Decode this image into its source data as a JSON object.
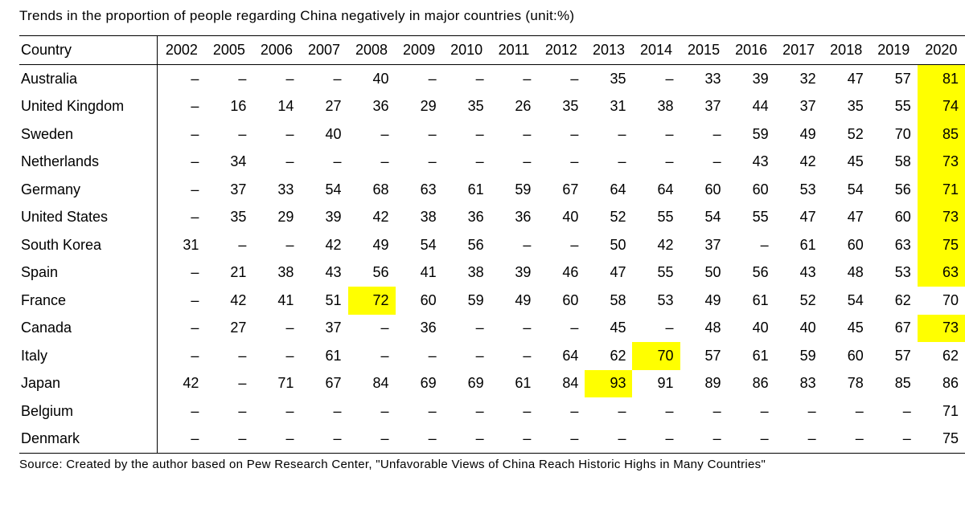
{
  "title": "Trends in the proportion of people regarding China negatively in major countries (unit:%)",
  "table": {
    "header": [
      "Country",
      "2002",
      "2005",
      "2006",
      "2007",
      "2008",
      "2009",
      "2010",
      "2011",
      "2012",
      "2013",
      "2014",
      "2015",
      "2016",
      "2017",
      "2018",
      "2019",
      "2020"
    ],
    "highlight_color": "#ffff00",
    "rows": [
      {
        "country": "Australia",
        "values": [
          "–",
          "–",
          "–",
          "–",
          "40",
          "–",
          "–",
          "–",
          "–",
          "35",
          "–",
          "33",
          "39",
          "32",
          "47",
          "57",
          "81"
        ],
        "highlight": "2020"
      },
      {
        "country": "United Kingdom",
        "values": [
          "–",
          "16",
          "14",
          "27",
          "36",
          "29",
          "35",
          "26",
          "35",
          "31",
          "38",
          "37",
          "44",
          "37",
          "35",
          "55",
          "74"
        ],
        "highlight": "2020"
      },
      {
        "country": "Sweden",
        "values": [
          "–",
          "–",
          "–",
          "40",
          "–",
          "–",
          "–",
          "–",
          "–",
          "–",
          "–",
          "–",
          "59",
          "49",
          "52",
          "70",
          "85"
        ],
        "highlight": "2020"
      },
      {
        "country": "Netherlands",
        "values": [
          "–",
          "34",
          "–",
          "–",
          "–",
          "–",
          "–",
          "–",
          "–",
          "–",
          "–",
          "–",
          "43",
          "42",
          "45",
          "58",
          "73"
        ],
        "highlight": "2020"
      },
      {
        "country": "Germany",
        "values": [
          "–",
          "37",
          "33",
          "54",
          "68",
          "63",
          "61",
          "59",
          "67",
          "64",
          "64",
          "60",
          "60",
          "53",
          "54",
          "56",
          "71"
        ],
        "highlight": "2020"
      },
      {
        "country": "United States",
        "values": [
          "–",
          "35",
          "29",
          "39",
          "42",
          "38",
          "36",
          "36",
          "40",
          "52",
          "55",
          "54",
          "55",
          "47",
          "47",
          "60",
          "73"
        ],
        "highlight": "2020"
      },
      {
        "country": "South Korea",
        "values": [
          "31",
          "–",
          "–",
          "42",
          "49",
          "54",
          "56",
          "–",
          "–",
          "50",
          "42",
          "37",
          "–",
          "61",
          "60",
          "63",
          "75"
        ],
        "highlight": "2020"
      },
      {
        "country": "Spain",
        "values": [
          "–",
          "21",
          "38",
          "43",
          "56",
          "41",
          "38",
          "39",
          "46",
          "47",
          "55",
          "50",
          "56",
          "43",
          "48",
          "53",
          "63"
        ],
        "highlight": "2020"
      },
      {
        "country": "France",
        "values": [
          "–",
          "42",
          "41",
          "51",
          "72",
          "60",
          "59",
          "49",
          "60",
          "58",
          "53",
          "49",
          "61",
          "52",
          "54",
          "62",
          "70"
        ],
        "highlight": "2008"
      },
      {
        "country": "Canada",
        "values": [
          "–",
          "27",
          "–",
          "37",
          "–",
          "36",
          "–",
          "–",
          "–",
          "45",
          "–",
          "48",
          "40",
          "40",
          "45",
          "67",
          "73"
        ],
        "highlight": "2020"
      },
      {
        "country": "Italy",
        "values": [
          "–",
          "–",
          "–",
          "61",
          "–",
          "–",
          "–",
          "–",
          "64",
          "62",
          "70",
          "57",
          "61",
          "59",
          "60",
          "57",
          "62"
        ],
        "highlight": "2014"
      },
      {
        "country": "Japan",
        "values": [
          "42",
          "–",
          "71",
          "67",
          "84",
          "69",
          "69",
          "61",
          "84",
          "93",
          "91",
          "89",
          "86",
          "83",
          "78",
          "85",
          "86"
        ],
        "highlight": "2013"
      },
      {
        "country": "Belgium",
        "values": [
          "–",
          "–",
          "–",
          "–",
          "–",
          "–",
          "–",
          "–",
          "–",
          "–",
          "–",
          "–",
          "–",
          "–",
          "–",
          "–",
          "71"
        ]
      },
      {
        "country": "Denmark",
        "values": [
          "–",
          "–",
          "–",
          "–",
          "–",
          "–",
          "–",
          "–",
          "–",
          "–",
          "–",
          "–",
          "–",
          "–",
          "–",
          "–",
          "75"
        ]
      }
    ]
  },
  "source": "Source: Created by the author based on Pew Research Center, \"Unfavorable Views of China Reach Historic Highs in Many Countries\""
}
